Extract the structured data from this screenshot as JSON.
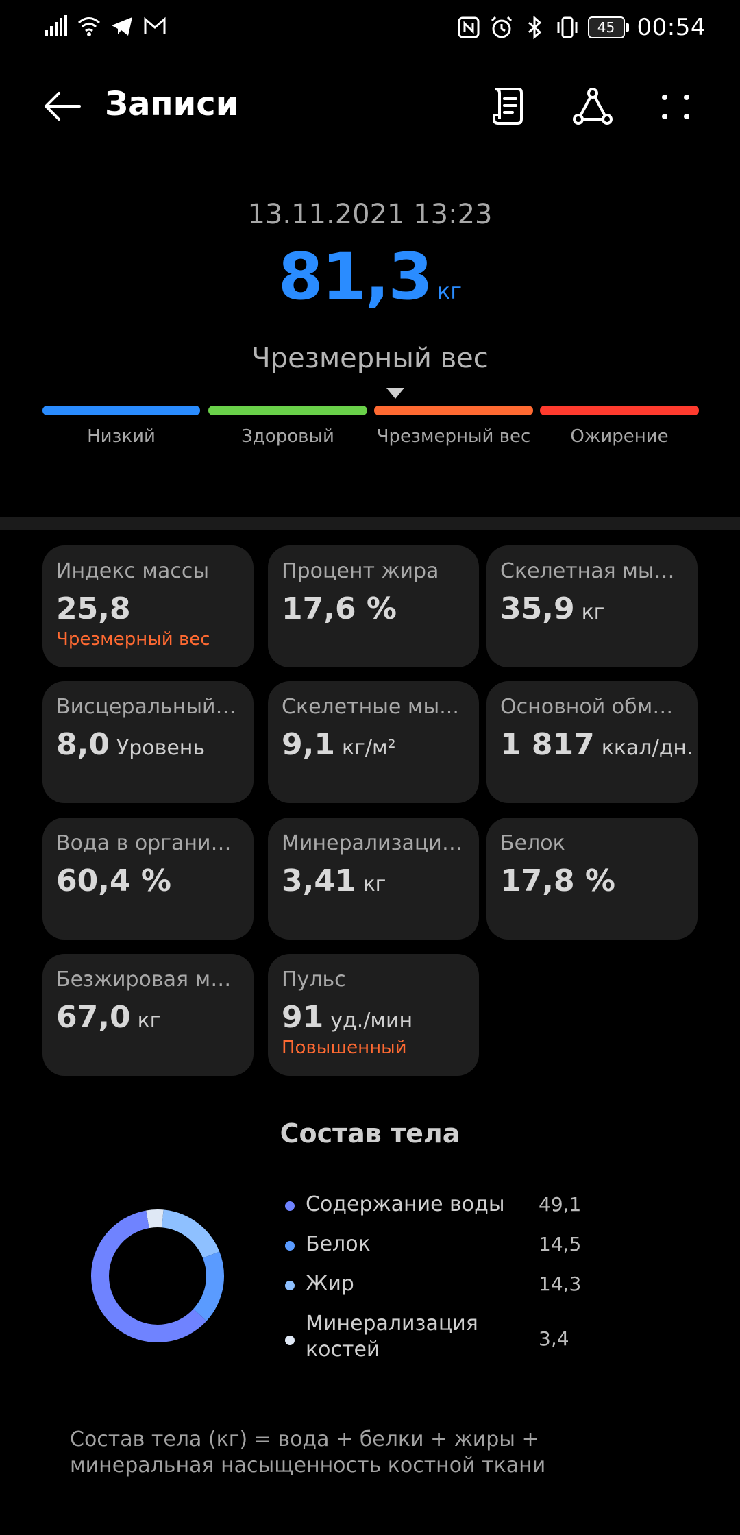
{
  "status_bar": {
    "time": "00:54",
    "battery": "45",
    "left_icons": [
      "signal-icon",
      "wifi-icon",
      "telegram-icon",
      "gmail-icon"
    ],
    "right_icons": [
      "nfc-icon",
      "alarm-icon",
      "bluetooth-icon",
      "vibrate-icon"
    ]
  },
  "appbar": {
    "title": "Записи",
    "icons": [
      "back-arrow-icon",
      "document-icon",
      "share-icon",
      "more-icon"
    ]
  },
  "header": {
    "datetime": "13.11.2021 13:23",
    "weight": "81,3",
    "unit": "кг",
    "category": "Чрезмерный вес"
  },
  "scale": {
    "segments": [
      {
        "label": "Низкий",
        "color": "#2a8cff"
      },
      {
        "label": "Здоровый",
        "color": "#6ad14a"
      },
      {
        "label": "Чрезмерный вес",
        "color": "#ff6a32"
      },
      {
        "label": "Ожирение",
        "color": "#ff3b2e"
      }
    ],
    "active_index": 2,
    "pointer_position": 0.02
  },
  "metrics": [
    {
      "label": "Индекс массы",
      "value": "25,8",
      "unit": "",
      "status": "Чрезмерный вес"
    },
    {
      "label": "Процент жира",
      "value": "17,6 %",
      "unit": "",
      "status": ""
    },
    {
      "label": "Скелетная мыш...",
      "value": "35,9",
      "unit": "кг",
      "status": ""
    },
    {
      "label": "Висцеральный ...",
      "value": "8,0",
      "unit": "Уровень",
      "status": ""
    },
    {
      "label": "Скелетные мы...",
      "value": "9,1",
      "unit": "кг/м²",
      "status": ""
    },
    {
      "label": "Основной обмен...",
      "value": "1 817",
      "unit": "ккал/дн.",
      "status": ""
    },
    {
      "label": "Вода в организме",
      "value": "60,4 %",
      "unit": "",
      "status": ""
    },
    {
      "label": "Минерализация...",
      "value": "3,41",
      "unit": "кг",
      "status": ""
    },
    {
      "label": "Белок",
      "value": "17,8 %",
      "unit": "",
      "status": ""
    },
    {
      "label": "Безжировая масса",
      "value": "67,0",
      "unit": "кг",
      "status": ""
    },
    {
      "label": "Пульс",
      "value": "91",
      "unit": "уд./мин",
      "status": "Повышенный"
    }
  ],
  "composition": {
    "title": "Состав тела",
    "items": [
      {
        "name": "Содержание воды",
        "value": "49,1",
        "color": "#6f83ff"
      },
      {
        "name": "Белок",
        "value": "14,5",
        "color": "#5a9bff"
      },
      {
        "name": "Жир",
        "value": "14,3",
        "color": "#8ec0ff"
      },
      {
        "name": "Минерализация костей",
        "value": "3,4",
        "color": "#dfe8f5"
      }
    ],
    "formula": "Состав тела (кг) = вода + белки + жиры + минеральная насыщенность костной ткани"
  },
  "chart_data": {
    "type": "pie",
    "title": "Состав тела",
    "categories": [
      "Содержание воды",
      "Белок",
      "Жир",
      "Минерализация костей"
    ],
    "values": [
      49.1,
      14.5,
      14.3,
      3.4
    ]
  }
}
